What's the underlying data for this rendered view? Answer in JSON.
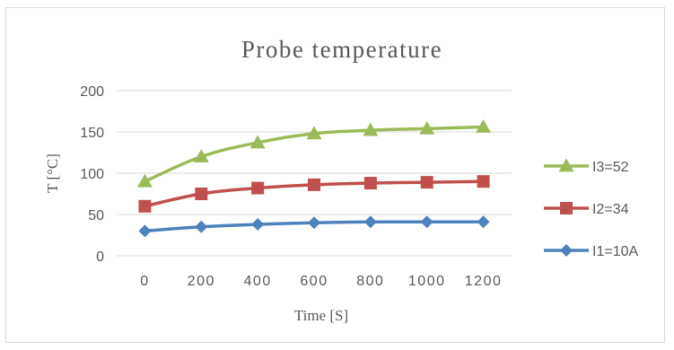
{
  "chart_data": {
    "type": "line",
    "title": "Probe temperature",
    "xlabel": "Time [S]",
    "ylabel": "T [°C]",
    "x": [
      0,
      200,
      400,
      600,
      800,
      1000,
      1200
    ],
    "x_tick_labels": [
      "0",
      "200",
      "400",
      "600",
      "800",
      "1000",
      "1200"
    ],
    "y_ticks": [
      0,
      50,
      100,
      150,
      200
    ],
    "y_tick_labels": [
      "0",
      "50",
      "100",
      "150",
      "200"
    ],
    "ylim": [
      0,
      200
    ],
    "grid": true,
    "legend_position": "right",
    "series": [
      {
        "name": "I3=52",
        "values": [
          90,
          120,
          137,
          148,
          152,
          154,
          156
        ],
        "color": "#9bbb59",
        "marker": "triangle"
      },
      {
        "name": "I2=34",
        "values": [
          60,
          75,
          82,
          86,
          88,
          89,
          90
        ],
        "color": "#c0504d",
        "marker": "square"
      },
      {
        "name": "I1=10A",
        "values": [
          30,
          35,
          38,
          40,
          41,
          41,
          41
        ],
        "color": "#4f81bd",
        "marker": "diamond"
      }
    ]
  }
}
